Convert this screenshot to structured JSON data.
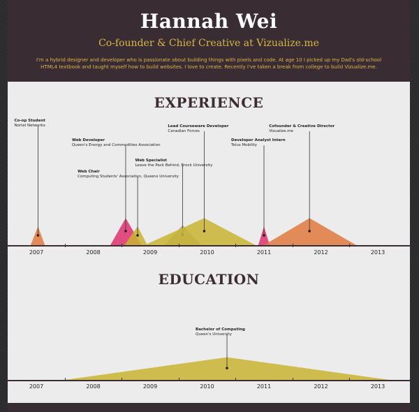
{
  "header": {
    "name": "Hannah Wei",
    "tagline": "Co-founder & Chief Creative at Vizualize.me",
    "bio": "I'm a hybrid designer and developer who is passionate about building things with pixels and code. At age 10 I picked up my Dad's old-school HTML4 textbook and taught myself how to build websites. I love to create. Recently I've taken a break from college to build Vizualize.me."
  },
  "experience": {
    "title": "EXPERIENCE",
    "years": [
      "2007",
      "2008",
      "2009",
      "2010",
      "2011",
      "2012",
      "2013"
    ],
    "jobs": [
      {
        "title": "Co-op Student",
        "org": "Nortel Networks",
        "start": 2006.9,
        "end": 2007.15,
        "peak": 2007.03,
        "height": 0.32,
        "color": "#e07a3f"
      },
      {
        "title": "Web Developer",
        "org": "Queen's Energy and Commodities Association",
        "start": 2008.3,
        "end": 2008.85,
        "peak": 2008.57,
        "height": 0.46,
        "color": "#e0316f"
      },
      {
        "title": "Web Chair",
        "org": "Computing Students' Association, Queens University",
        "start": 2008.55,
        "end": 2008.95,
        "peak": 2008.78,
        "height": 0.32,
        "color": "#c9b432"
      },
      {
        "title": "Web Specialist",
        "org": "Leave the Pack Behind, Brock University",
        "start": 2009.25,
        "end": 2009.9,
        "peak": 2009.57,
        "height": 0.34,
        "color": "#a9a58a"
      },
      {
        "title": "Lead Courseware Developer",
        "org": "Canadian Forces",
        "start": 2008.9,
        "end": 2010.85,
        "peak": 2009.95,
        "height": 0.46,
        "color": "#c9b432"
      },
      {
        "title": "Developer Analyst Intern",
        "org": "Telus Mobility",
        "start": 2010.9,
        "end": 2011.1,
        "peak": 2011.0,
        "height": 0.32,
        "color": "#e0316f"
      },
      {
        "title": "Cofounder & Creative Director",
        "org": "Vizualize.me",
        "start": 2011.0,
        "end": 2012.62,
        "peak": 2011.8,
        "height": 0.46,
        "color": "#e07a3f"
      }
    ]
  },
  "education": {
    "title": "EDUCATION",
    "years": [
      "2007",
      "2008",
      "2009",
      "2010",
      "2011",
      "2012",
      "2013"
    ],
    "items": [
      {
        "title": "Bachelor of Computing",
        "org": "Queen's University",
        "start": 2007.5,
        "end": 2013.2,
        "peak": 2010.35,
        "height": 0.36,
        "color": "#c9b432"
      }
    ]
  }
}
